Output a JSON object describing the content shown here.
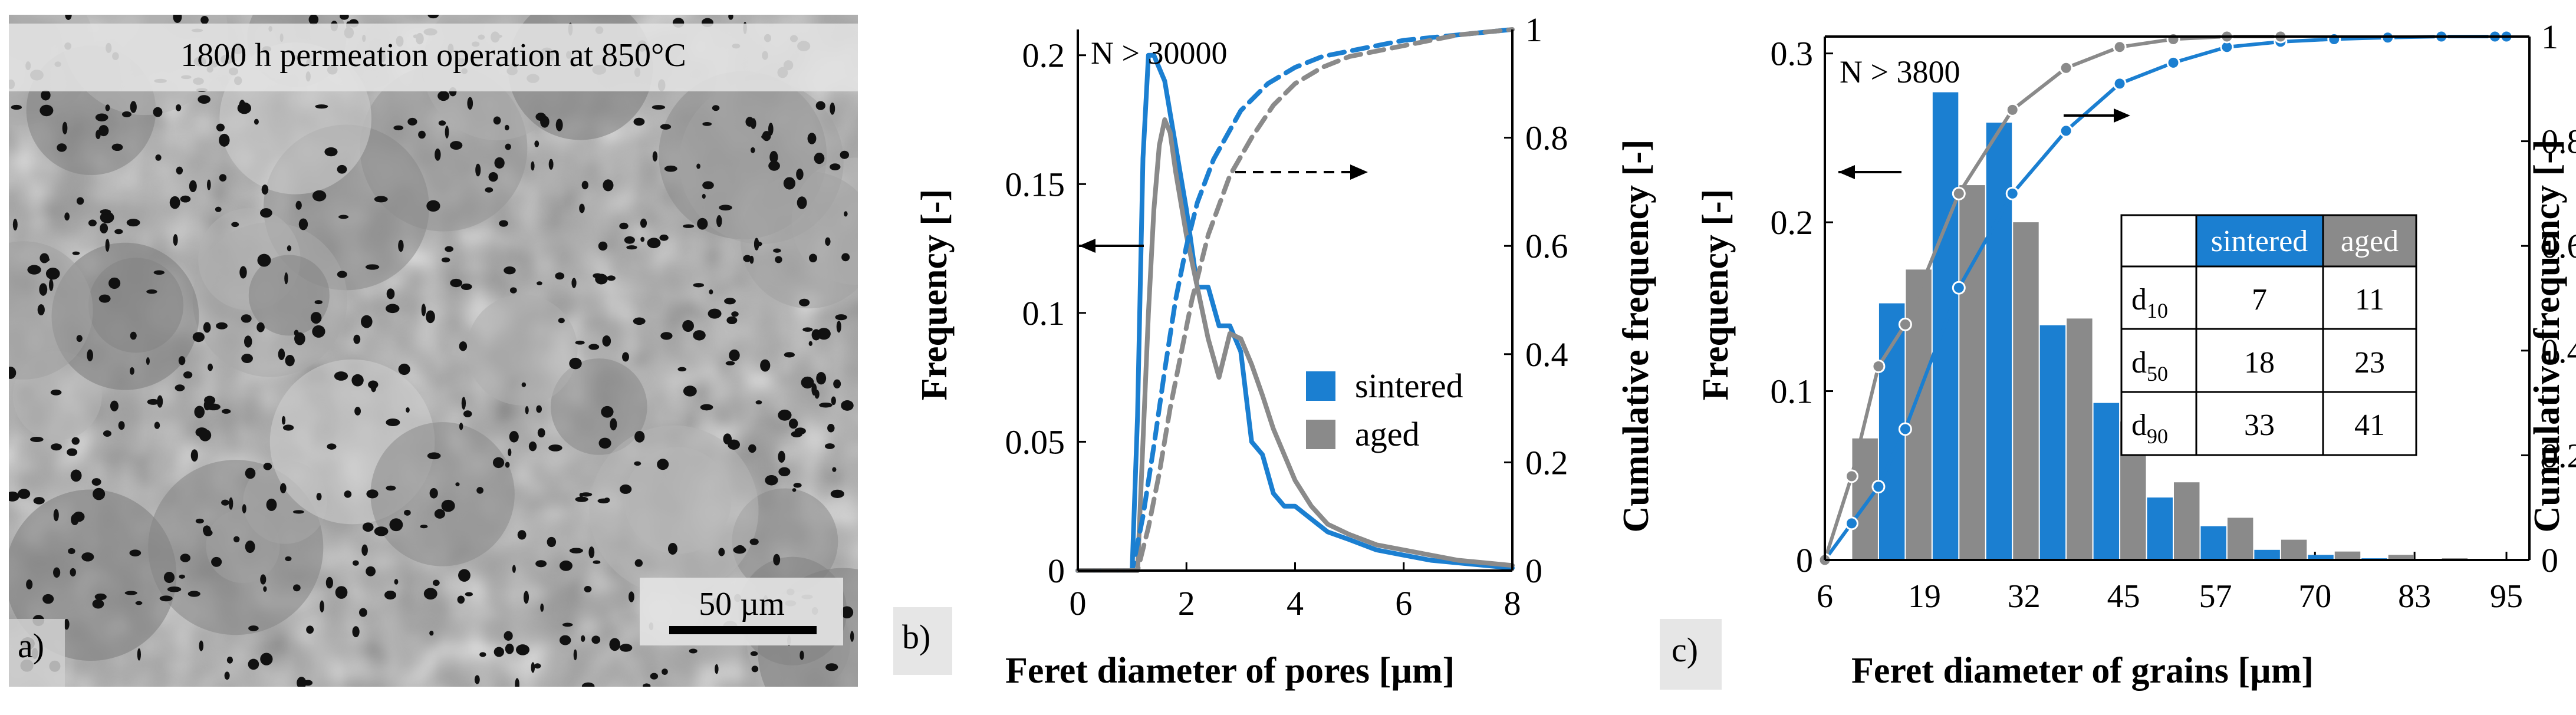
{
  "panel_a": {
    "caption": "1800 h permeation operation at 850°C",
    "scale_label": "50 µm",
    "panel_label": "a)"
  },
  "panel_b": {
    "panel_label": "b)",
    "annotation": "N > 30000"
  },
  "panel_c": {
    "panel_label": "c)",
    "annotation": "N > 3800",
    "table": {
      "headers": [
        "",
        "sintered",
        "aged"
      ],
      "rows": [
        {
          "label": "d",
          "sub": "10",
          "sintered": "7",
          "aged": "11"
        },
        {
          "label": "d",
          "sub": "50",
          "sintered": "18",
          "aged": "23"
        },
        {
          "label": "d",
          "sub": "90",
          "sintered": "33",
          "aged": "41"
        }
      ]
    }
  },
  "colors": {
    "sintered": "#1b7fd1",
    "aged": "#8a8a8a",
    "axis": "#000000",
    "label_box": "#e6e6e6"
  },
  "chart_data": [
    {
      "type": "line",
      "xlabel": "Feret diameter of pores [µm]",
      "ylabel": "Frequency [-]",
      "y2label": "Cumulative frequency [-]",
      "xlim": [
        0,
        8
      ],
      "ylim": [
        0,
        0.21
      ],
      "y2lim": [
        0,
        1
      ],
      "xticks": [
        "0",
        "2",
        "4",
        "6",
        "8"
      ],
      "yticks": [
        "0",
        "0.05",
        "0.1",
        "0.15",
        "0.2"
      ],
      "y2ticks": [
        "0",
        "0.2",
        "0.4",
        "0.6",
        "0.8",
        "1"
      ],
      "legend": "center-right",
      "series": [
        {
          "name": "sintered",
          "axis": "left",
          "x": [
            0,
            1.0,
            1.1,
            1.2,
            1.3,
            1.4,
            1.6,
            1.8,
            2.0,
            2.2,
            2.4,
            2.6,
            2.8,
            3.0,
            3.2,
            3.4,
            3.6,
            3.8,
            4.0,
            4.3,
            4.6,
            5.0,
            5.5,
            6.0,
            6.5,
            7.0,
            7.5,
            8.0
          ],
          "y": [
            0,
            0,
            0.06,
            0.16,
            0.2,
            0.2,
            0.19,
            0.165,
            0.14,
            0.11,
            0.11,
            0.095,
            0.095,
            0.085,
            0.05,
            0.045,
            0.03,
            0.025,
            0.025,
            0.02,
            0.015,
            0.012,
            0.008,
            0.006,
            0.004,
            0.003,
            0.002,
            0.001
          ]
        },
        {
          "name": "aged",
          "axis": "left",
          "x": [
            0,
            1.1,
            1.2,
            1.3,
            1.4,
            1.5,
            1.6,
            1.7,
            1.8,
            2.0,
            2.2,
            2.4,
            2.6,
            2.8,
            3.0,
            3.2,
            3.4,
            3.6,
            3.8,
            4.0,
            4.3,
            4.6,
            5.0,
            5.5,
            6.0,
            6.5,
            7.0,
            7.5,
            8.0
          ],
          "y": [
            0,
            0,
            0.05,
            0.1,
            0.14,
            0.165,
            0.175,
            0.17,
            0.155,
            0.13,
            0.11,
            0.09,
            0.075,
            0.092,
            0.09,
            0.08,
            0.068,
            0.055,
            0.045,
            0.035,
            0.025,
            0.018,
            0.014,
            0.01,
            0.008,
            0.006,
            0.004,
            0.003,
            0.002
          ]
        },
        {
          "name": "sintered",
          "axis": "right",
          "dashed": true,
          "x": [
            0,
            1.0,
            1.2,
            1.4,
            1.6,
            1.8,
            2.0,
            2.2,
            2.5,
            3.0,
            3.5,
            4.0,
            4.5,
            5.0,
            6.0,
            7.0,
            8.0
          ],
          "y": [
            0,
            0,
            0.1,
            0.23,
            0.37,
            0.5,
            0.6,
            0.68,
            0.76,
            0.85,
            0.9,
            0.93,
            0.95,
            0.96,
            0.98,
            0.99,
            1.0
          ]
        },
        {
          "name": "aged",
          "axis": "right",
          "dashed": true,
          "x": [
            0,
            1.1,
            1.3,
            1.5,
            1.7,
            1.9,
            2.1,
            2.4,
            2.8,
            3.2,
            3.6,
            4.0,
            4.5,
            5.0,
            6.0,
            7.0,
            8.0
          ],
          "y": [
            0,
            0,
            0.08,
            0.18,
            0.3,
            0.4,
            0.5,
            0.62,
            0.73,
            0.8,
            0.86,
            0.9,
            0.93,
            0.95,
            0.97,
            0.99,
            1.0
          ]
        }
      ]
    },
    {
      "type": "bar",
      "xlabel": "Feret diameter of grains [µm]",
      "ylabel": "Frequency [-]",
      "y2label": "Cumulative frequency [-]",
      "xlim": [
        6,
        98
      ],
      "ylim": [
        0,
        0.31
      ],
      "y2lim": [
        0,
        1
      ],
      "xticks": [
        "6",
        "19",
        "32",
        "45",
        "57",
        "70",
        "83",
        "95"
      ],
      "yticks": [
        "0",
        "0.1",
        "0.2",
        "0.3"
      ],
      "y2ticks": [
        "0",
        "0.2",
        "0.4",
        "0.6",
        "0.8",
        "1"
      ],
      "bin_centers": [
        9.5,
        16.5,
        23.5,
        30.5,
        37.5,
        44.5,
        51.5,
        58.5,
        65.5,
        72.5,
        79.5,
        86.5,
        93.5
      ],
      "bin_width": 7,
      "series": [
        {
          "name": "sintered",
          "values": [
            0,
            0.152,
            0.277,
            0.259,
            0.139,
            0.093,
            0.037,
            0.02,
            0.006,
            0.003,
            0.001,
            0.0005,
            0.0005
          ]
        },
        {
          "name": "aged",
          "values": [
            0.072,
            0.172,
            0.222,
            0.2,
            0.143,
            0.082,
            0.046,
            0.025,
            0.012,
            0.005,
            0.003,
            0.001,
            0.0005
          ]
        }
      ],
      "cumulative": [
        {
          "name": "sintered",
          "x": [
            6,
            9.5,
            13,
            16.5,
            23.5,
            30.5,
            37.5,
            44.5,
            51.5,
            58.5,
            65.5,
            72.5,
            79.5,
            86.5,
            93.5,
            95
          ],
          "y": [
            0,
            0.07,
            0.14,
            0.25,
            0.52,
            0.7,
            0.82,
            0.91,
            0.95,
            0.98,
            0.99,
            0.995,
            0.998,
            1.0,
            1.0,
            1.0
          ]
        },
        {
          "name": "aged",
          "x": [
            6,
            9.5,
            13,
            16.5,
            23.5,
            30.5,
            37.5,
            44.5,
            51.5,
            58.5,
            65.5
          ],
          "y": [
            0,
            0.16,
            0.37,
            0.45,
            0.7,
            0.86,
            0.94,
            0.98,
            0.995,
            1.0,
            1.0
          ]
        }
      ]
    }
  ]
}
